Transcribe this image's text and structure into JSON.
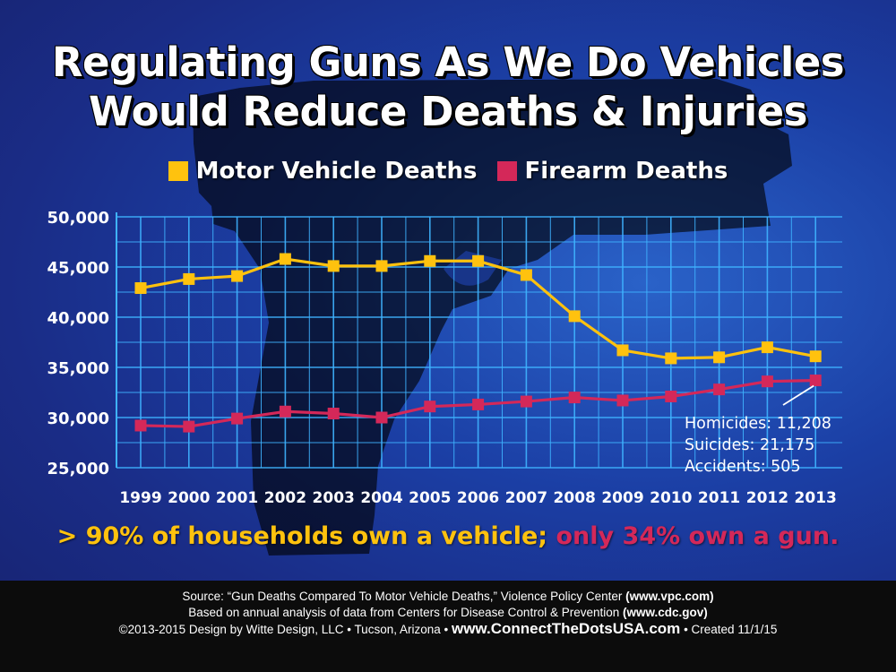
{
  "title": {
    "line1": "Regulating Guns As We Do Vehicles",
    "line2": "Would Reduce Deaths & Injuries"
  },
  "colors": {
    "vehicle": "#ffc20e",
    "firearm": "#d42859",
    "grid": "#3fb3ff",
    "text": "#ffffff"
  },
  "chart_data": {
    "type": "line",
    "title": "Regulating Guns As We Do Vehicles Would Reduce Deaths & Injuries",
    "xlabel": "",
    "ylabel": "",
    "categories": [
      "1999",
      "2000",
      "2001",
      "2002",
      "2003",
      "2004",
      "2005",
      "2006",
      "2007",
      "2008",
      "2009",
      "2010",
      "2011",
      "2012",
      "2013"
    ],
    "y_ticks": [
      "50,000",
      "45,000",
      "40,000",
      "35,000",
      "30,000",
      "25,000"
    ],
    "ylim": [
      25000,
      50000
    ],
    "grid": true,
    "legend_position": "top",
    "series": [
      {
        "name": "Motor Vehicle Deaths",
        "color": "#ffc20e",
        "values": [
          42900,
          43800,
          44100,
          45800,
          45100,
          45100,
          45600,
          45600,
          44200,
          40100,
          36700,
          35900,
          36000,
          37000,
          36100
        ]
      },
      {
        "name": "Firearm Deaths",
        "color": "#d42859",
        "values": [
          29200,
          29100,
          29900,
          30600,
          30400,
          30000,
          31100,
          31300,
          31600,
          32000,
          31700,
          32100,
          32800,
          33600,
          33700
        ]
      }
    ],
    "annotation": {
      "lines": [
        "Homicides: 11,208",
        "Suicides: 21,175",
        "Accidents: 505"
      ]
    }
  },
  "tagline": {
    "part1": "> 90% of households own a vehicle;",
    "part2": " only 34% own a gun."
  },
  "footer": {
    "line1_a": "Source: “Gun Deaths Compared To Motor Vehicle Deaths,” Violence Policy Center ",
    "line1_b": "(www.vpc.com)",
    "line2_a": "Based on annual analysis of data from Centers for Disease Control & Prevention ",
    "line2_b": "(www.cdc.gov)",
    "line3_a": "©2013-2015 Design by Witte Design, LLC • Tucson, Arizona • ",
    "line3_b": "www.ConnectTheDotsUSA.com",
    "line3_c": " • Created 11/1/15"
  }
}
